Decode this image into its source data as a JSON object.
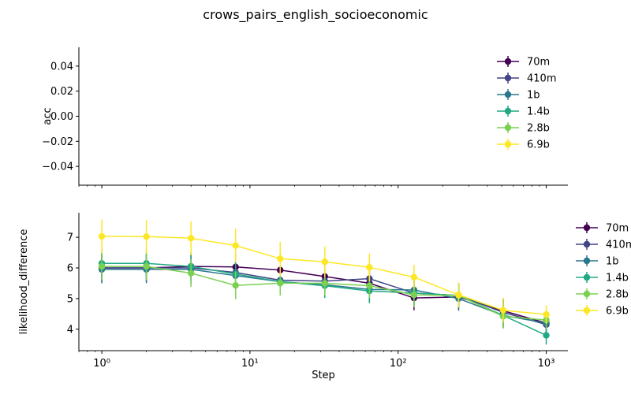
{
  "title": "crows_pairs_english_socioeconomic",
  "chart_data": [
    {
      "type": "line",
      "ylabel": "acc",
      "xlabel": "",
      "xscale": "log",
      "xlim": [
        0.7,
        1400
      ],
      "ylim": [
        -0.055,
        0.055
      ],
      "yticks": [
        -0.04,
        -0.02,
        0.0,
        0.02,
        0.04
      ],
      "ytick_labels": [
        "−0.04",
        "−0.02",
        "0.00",
        "0.02",
        "0.04"
      ],
      "x_tick_labels_shown": false,
      "legend_position": "top-right",
      "series": [
        {
          "name": "70m",
          "color": "#440154",
          "points": []
        },
        {
          "name": "410m",
          "color": "#414487",
          "points": []
        },
        {
          "name": "1b",
          "color": "#2a788e",
          "points": []
        },
        {
          "name": "1.4b",
          "color": "#22a884",
          "points": []
        },
        {
          "name": "2.8b",
          "color": "#7ad151",
          "points": []
        },
        {
          "name": "6.9b",
          "color": "#fde725",
          "points": []
        }
      ]
    },
    {
      "type": "line",
      "ylabel": "likelihood_difference",
      "xlabel": "Step",
      "xscale": "log",
      "xlim": [
        0.7,
        1400
      ],
      "ylim": [
        3.3,
        7.8
      ],
      "yticks": [
        4,
        5,
        6,
        7
      ],
      "ytick_labels": [
        "4",
        "5",
        "6",
        "7"
      ],
      "xticks": [
        1,
        10,
        100,
        1000
      ],
      "xtick_labels": [
        "10⁰",
        "10¹",
        "10²",
        "10³"
      ],
      "legend_position": "outside-right",
      "x": [
        1,
        2,
        4,
        8,
        16,
        32,
        64,
        128,
        256,
        512,
        1000
      ],
      "series": [
        {
          "name": "70m",
          "color": "#440154",
          "y": [
            6.0,
            6.0,
            6.05,
            6.03,
            5.93,
            5.72,
            5.5,
            5.02,
            5.05,
            4.6,
            4.2
          ],
          "err": [
            0.45,
            0.45,
            0.45,
            0.45,
            0.4,
            0.4,
            0.4,
            0.4,
            0.4,
            0.4,
            0.3
          ]
        },
        {
          "name": "410m",
          "color": "#414487",
          "y": [
            6.0,
            6.0,
            6.0,
            5.85,
            5.6,
            5.57,
            5.65,
            5.18,
            5.1,
            4.55,
            4.15
          ],
          "err": [
            0.45,
            0.45,
            0.45,
            0.45,
            0.4,
            0.4,
            0.4,
            0.4,
            0.4,
            0.4,
            0.3
          ]
        },
        {
          "name": "1b",
          "color": "#2a788e",
          "y": [
            5.95,
            5.95,
            5.95,
            5.75,
            5.55,
            5.45,
            5.3,
            5.28,
            5.0,
            4.45,
            4.2
          ],
          "err": [
            0.45,
            0.45,
            0.45,
            0.45,
            0.4,
            0.4,
            0.4,
            0.4,
            0.4,
            0.4,
            0.3
          ]
        },
        {
          "name": "1.4b",
          "color": "#22a884",
          "y": [
            6.15,
            6.15,
            6.05,
            5.8,
            5.55,
            5.42,
            5.25,
            5.18,
            5.1,
            4.45,
            3.8
          ],
          "err": [
            0.45,
            0.45,
            0.45,
            0.45,
            0.4,
            0.4,
            0.4,
            0.4,
            0.4,
            0.4,
            0.3
          ]
        },
        {
          "name": "2.8b",
          "color": "#7ad151",
          "y": [
            6.05,
            6.05,
            5.83,
            5.43,
            5.5,
            5.5,
            5.42,
            5.12,
            5.1,
            4.42,
            4.3
          ],
          "err": [
            0.45,
            0.45,
            0.45,
            0.45,
            0.4,
            0.4,
            0.4,
            0.4,
            0.4,
            0.4,
            0.3
          ]
        },
        {
          "name": "6.9b",
          "color": "#fde725",
          "y": [
            7.03,
            7.02,
            6.97,
            6.73,
            6.3,
            6.2,
            6.02,
            5.7,
            5.12,
            4.62,
            4.48
          ],
          "err": [
            0.55,
            0.55,
            0.55,
            0.55,
            0.55,
            0.5,
            0.45,
            0.4,
            0.4,
            0.4,
            0.3
          ]
        }
      ]
    }
  ]
}
